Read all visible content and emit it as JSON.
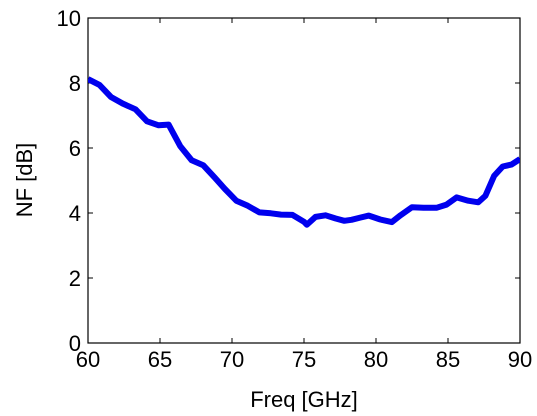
{
  "chart_data": {
    "type": "line",
    "xlabel": "Freq [GHz]",
    "ylabel": "NF [dB]",
    "xlim": [
      60,
      90
    ],
    "ylim": [
      0,
      10
    ],
    "xticks": [
      60,
      65,
      70,
      75,
      80,
      85,
      90
    ],
    "yticks": [
      0,
      2,
      4,
      6,
      8,
      10
    ],
    "grid": false,
    "series": [
      {
        "color": "#0000ee",
        "x": [
          60.0,
          60.8,
          61.6,
          62.4,
          63.3,
          64.1,
          64.9,
          65.6,
          66.4,
          67.2,
          68.0,
          68.8,
          69.5,
          70.3,
          71.1,
          71.9,
          72.7,
          73.4,
          74.2,
          75.0,
          75.2,
          75.8,
          76.5,
          77.2,
          77.8,
          78.3,
          78.9,
          79.5,
          80.3,
          81.1,
          81.7,
          82.5,
          83.3,
          84.2,
          84.9,
          85.6,
          86.4,
          87.1,
          87.6,
          88.2,
          88.8,
          89.4,
          90.0
        ],
        "y": [
          8.12,
          7.94,
          7.57,
          7.37,
          7.19,
          6.82,
          6.7,
          6.72,
          6.06,
          5.62,
          5.47,
          5.09,
          4.74,
          4.38,
          4.22,
          4.02,
          3.99,
          3.95,
          3.94,
          3.73,
          3.64,
          3.88,
          3.93,
          3.83,
          3.76,
          3.79,
          3.86,
          3.92,
          3.8,
          3.72,
          3.93,
          4.18,
          4.16,
          4.16,
          4.26,
          4.48,
          4.38,
          4.33,
          4.53,
          5.14,
          5.43,
          5.49,
          5.66
        ]
      }
    ]
  }
}
